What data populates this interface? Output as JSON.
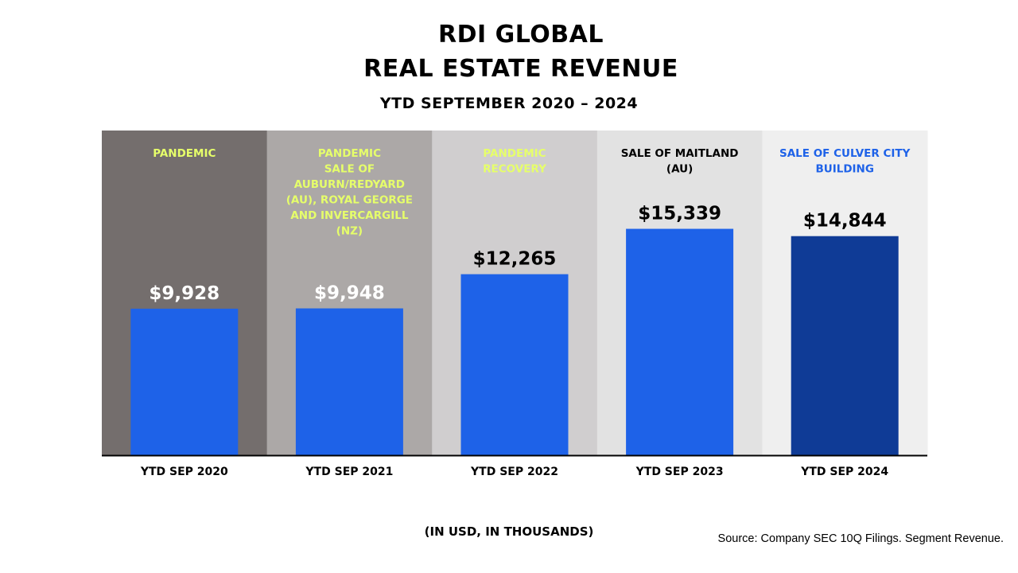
{
  "title_line1": "RDI GLOBAL",
  "title_line2": "REAL ESTATE REVENUE",
  "subtitle": "YTD SEPTEMBER 2020 – 2024",
  "units_note": "(IN USD,  IN THOUSANDS)",
  "source_note": "Source: Company SEC 10Q Filings.   Segment Revenue.",
  "colors": {
    "bar_blue": "#1e62e8",
    "bar_dark_blue": "#0f3b96",
    "annotation_yellow": "#e6ff6a",
    "annotation_black": "#000000",
    "annotation_blue": "#1e62e8",
    "band_1": "#746e6d",
    "band_2": "#aca8a7",
    "band_3": "#d0cecf",
    "band_4": "#e2e2e2",
    "band_5": "#efefef"
  },
  "chart_data": {
    "type": "bar",
    "title": "RDI GLOBAL REAL ESTATE REVENUE",
    "subtitle": "YTD SEPTEMBER 2020 – 2024",
    "categories": [
      "YTD SEP 2020",
      "YTD SEP 2021",
      "YTD SEP 2022",
      "YTD SEP 2023",
      "YTD SEP 2024"
    ],
    "values": [
      9928,
      9948,
      12265,
      15339,
      14844
    ],
    "value_labels": [
      "$9,928",
      "$9,948",
      "$12,265",
      "$15,339",
      "$14,844"
    ],
    "ylim": [
      0,
      22000
    ],
    "grid": false,
    "annotations": [
      [
        "PANDEMIC"
      ],
      [
        "PANDEMIC",
        "SALE OF",
        "AUBURN/REDYARD",
        "(AU), ROYAL GEORGE",
        "AND INVERCARGILL",
        "(NZ)"
      ],
      [
        "PANDEMIC",
        "RECOVERY"
      ],
      [
        "SALE OF MAITLAND",
        "(AU)"
      ],
      [
        "SALE OF CULVER CITY",
        "BUILDING"
      ]
    ]
  }
}
